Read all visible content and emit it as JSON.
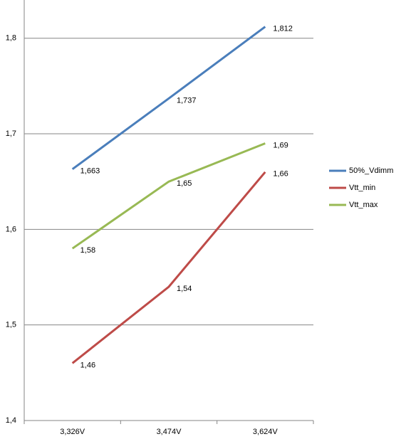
{
  "chart_data": {
    "type": "line",
    "categories": [
      "3,326V",
      "3,474V",
      "3,624V"
    ],
    "series": [
      {
        "name": "50%_Vdimm",
        "color": "#4a7ebb",
        "values": [
          1.663,
          1.737,
          1.812
        ],
        "value_labels": [
          "1,663",
          "1,737",
          "1,812"
        ]
      },
      {
        "name": "Vtt_min",
        "color": "#be4b48",
        "values": [
          1.46,
          1.54,
          1.66
        ],
        "value_labels": [
          "1,46",
          "1,54",
          "1,66"
        ]
      },
      {
        "name": "Vtt_max",
        "color": "#98b954",
        "values": [
          1.58,
          1.65,
          1.69
        ],
        "value_labels": [
          "1,58",
          "1,65",
          "1,69"
        ]
      }
    ],
    "ylim": [
      1.4,
      1.84
    ],
    "yticks": [
      {
        "value": 1.4,
        "label": "1,4"
      },
      {
        "value": 1.5,
        "label": "1,5"
      },
      {
        "value": 1.6,
        "label": "1,6"
      },
      {
        "value": 1.7,
        "label": "1,7"
      },
      {
        "value": 1.8,
        "label": "1,8"
      }
    ],
    "grid": true,
    "legend": "right"
  }
}
